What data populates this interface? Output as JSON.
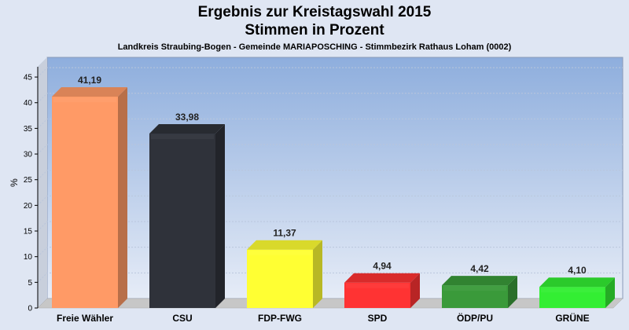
{
  "header": {
    "title": "Ergebnis zur Kreistagswahl 2015",
    "subtitle": "Stimmen in Prozent",
    "location": "Landkreis Straubing-Bogen - Gemeinde MARIAPOSCHING - Stimmbezirk Rathaus Loham (0002)"
  },
  "chart_data": {
    "type": "bar",
    "title": "Ergebnis zur Kreistagswahl 2015",
    "subtitle": "Stimmen in Prozent",
    "ylabel": "%",
    "xlabel": "",
    "ylim": [
      0,
      47
    ],
    "yticks": [
      0,
      5,
      10,
      15,
      20,
      25,
      30,
      35,
      40,
      45
    ],
    "grid": true,
    "categories": [
      "Freie Wähler",
      "CSU",
      "FDP-FWG",
      "SPD",
      "ÖDP/PU",
      "GRÜNE"
    ],
    "values": [
      41.19,
      33.98,
      11.37,
      4.94,
      4.42,
      4.1
    ],
    "value_labels": [
      "41,19",
      "33,98",
      "11,37",
      "4,94",
      "4,42",
      "4,10"
    ],
    "colors": [
      "#ff9a66",
      "#2f323a",
      "#ffff33",
      "#ff3333",
      "#3a9a3a",
      "#33ee33"
    ]
  }
}
